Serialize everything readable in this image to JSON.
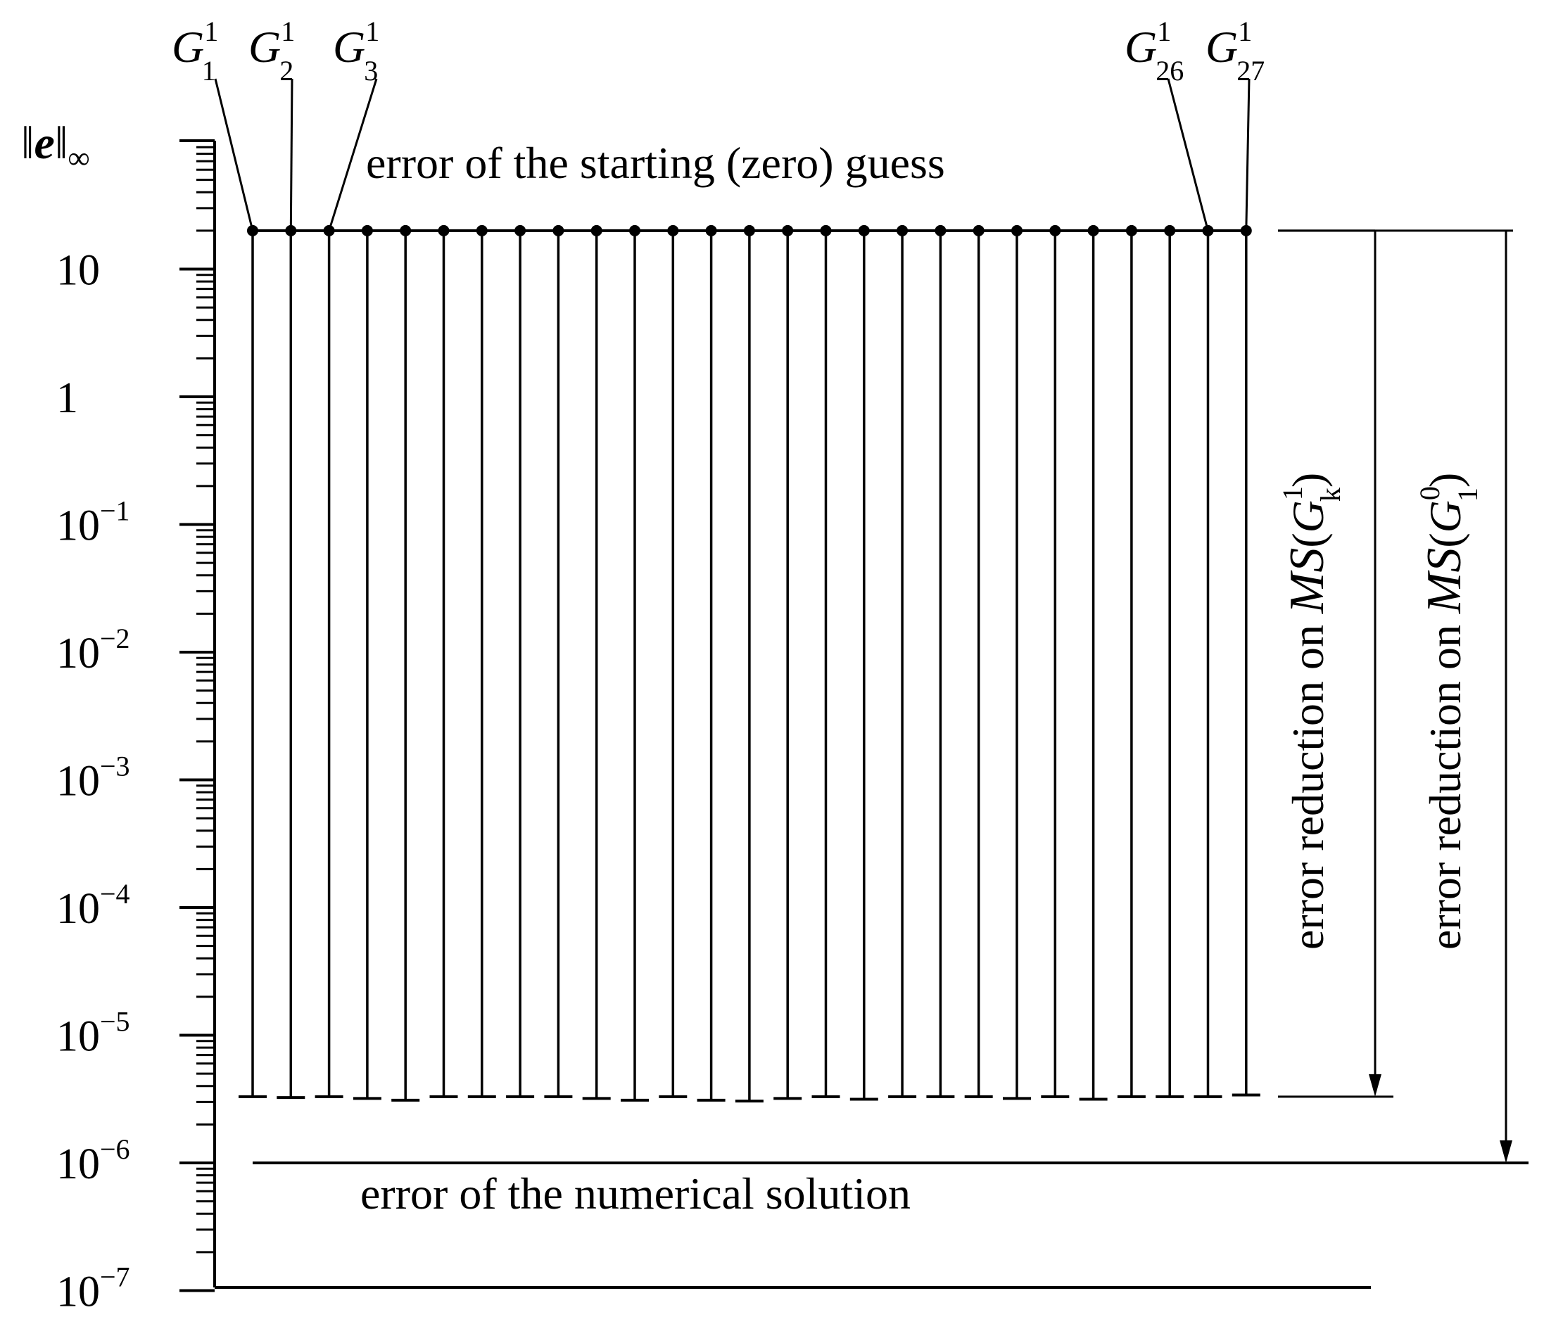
{
  "chart_data": {
    "type": "line",
    "scale": "log",
    "ylim": [
      1e-07,
      100
    ],
    "ylabel": {
      "norm": "e",
      "sub": "∞"
    },
    "yticks": [
      {
        "value": 10,
        "base": "10",
        "exp": ""
      },
      {
        "value": 1,
        "base": "1",
        "exp": ""
      },
      {
        "value": 0.1,
        "base": "10",
        "exp": "−1"
      },
      {
        "value": 0.01,
        "base": "10",
        "exp": "−2"
      },
      {
        "value": 0.001,
        "base": "10",
        "exp": "−3"
      },
      {
        "value": 0.0001,
        "base": "10",
        "exp": "−4"
      },
      {
        "value": 1e-05,
        "base": "10",
        "exp": "−5"
      },
      {
        "value": 1e-06,
        "base": "10",
        "exp": "−6"
      },
      {
        "value": 1e-07,
        "base": "10",
        "exp": "−7"
      }
    ],
    "grid": false,
    "starting_error": 20,
    "numerical_solution_error": 1e-06,
    "starting_error_label": "error of the starting (zero) guess",
    "numerical_solution_label": "error of the numerical solution",
    "subgrids": [
      {
        "index": 1,
        "label": "G",
        "sub": "1",
        "sup": "1",
        "final_error": 3.3e-06
      },
      {
        "index": 2,
        "label": "G",
        "sub": "2",
        "sup": "1",
        "final_error": 3.25e-06
      },
      {
        "index": 3,
        "label": "G",
        "sub": "3",
        "sup": "1",
        "final_error": 3.3e-06
      },
      {
        "index": 4,
        "final_error": 3.2e-06
      },
      {
        "index": 5,
        "final_error": 3.1e-06
      },
      {
        "index": 6,
        "final_error": 3.3e-06
      },
      {
        "index": 7,
        "final_error": 3.3e-06
      },
      {
        "index": 8,
        "final_error": 3.3e-06
      },
      {
        "index": 9,
        "final_error": 3.3e-06
      },
      {
        "index": 10,
        "final_error": 3.2e-06
      },
      {
        "index": 11,
        "final_error": 3.1e-06
      },
      {
        "index": 12,
        "final_error": 3.3e-06
      },
      {
        "index": 13,
        "final_error": 3.1e-06
      },
      {
        "index": 14,
        "final_error": 3.05e-06
      },
      {
        "index": 15,
        "final_error": 3.2e-06
      },
      {
        "index": 16,
        "final_error": 3.3e-06
      },
      {
        "index": 17,
        "final_error": 3.15e-06
      },
      {
        "index": 18,
        "final_error": 3.3e-06
      },
      {
        "index": 19,
        "final_error": 3.3e-06
      },
      {
        "index": 20,
        "final_error": 3.3e-06
      },
      {
        "index": 21,
        "final_error": 3.2e-06
      },
      {
        "index": 22,
        "final_error": 3.3e-06
      },
      {
        "index": 23,
        "final_error": 3.15e-06
      },
      {
        "index": 24,
        "final_error": 3.3e-06
      },
      {
        "index": 25,
        "final_error": 3.3e-06
      },
      {
        "index": 26,
        "label": "G",
        "sub": "26",
        "sup": "1",
        "final_error": 3.3e-06
      },
      {
        "index": 27,
        "label": "G",
        "sub": "27",
        "sup": "1",
        "final_error": 3.4e-06
      }
    ],
    "annotations": [
      {
        "prefix": "error reduction on",
        "math": "MS",
        "arg": "G",
        "sub": "k",
        "sup": "1",
        "from": 20,
        "to": 3.3e-06
      },
      {
        "prefix": "error reduction on",
        "math": "MS",
        "arg": "G",
        "sub": "1",
        "sup": "0",
        "from": 20,
        "to": 1e-06
      }
    ]
  }
}
